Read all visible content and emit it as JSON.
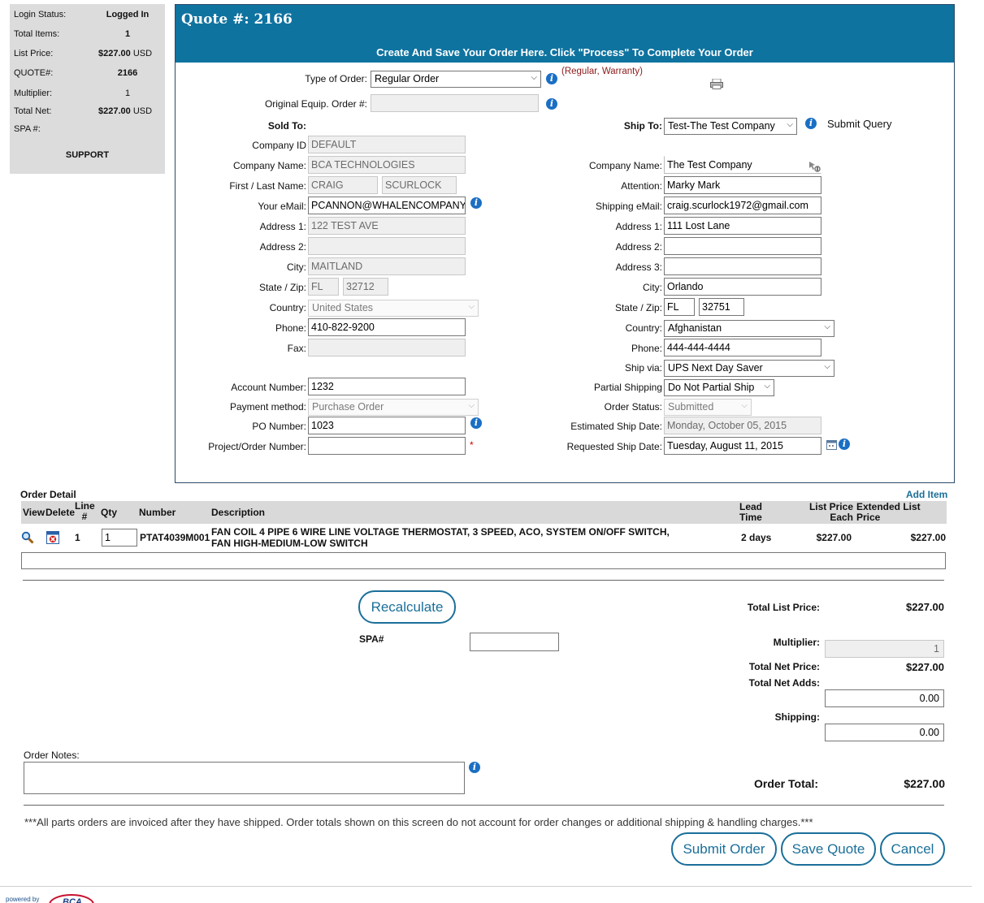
{
  "summary": {
    "login_status_label": "Login Status:",
    "login_status_value": "Logged In",
    "total_items_label": "Total Items:",
    "total_items_value": "1",
    "list_price_label": "List Price:",
    "list_price_value": "$227.00",
    "list_price_currency": "USD",
    "quote_label": "QUOTE#:",
    "quote_value": "2166",
    "multiplier_label": "Multiplier:",
    "multiplier_value": "1",
    "total_net_label": "Total Net:",
    "total_net_value": "$227.00",
    "total_net_currency": "USD",
    "spa_label": "SPA #:",
    "support_label": "SUPPORT"
  },
  "header": {
    "quote_title": "Quote #: 2166",
    "subtitle": "Create And Save Your Order Here. Click \"Process\" To Complete Your Order"
  },
  "order_type": {
    "label": "Type of Order:",
    "value": "Regular Order",
    "hint": "(Regular, Warranty)",
    "orig_label": "Original Equip. Order #:",
    "orig_value": ""
  },
  "sold_to": {
    "title": "Sold To:",
    "company_id_label": "Company ID",
    "company_id": "DEFAULT",
    "company_name_label": "Company Name:",
    "company_name": "BCA TECHNOLOGIES",
    "name_label": "First / Last Name:",
    "first_name": "CRAIG",
    "last_name": "SCURLOCK",
    "email_label": "Your eMail:",
    "email": "PCANNON@WHALENCOMPANY.COM",
    "address1_label": "Address 1:",
    "address1": "122 TEST AVE",
    "address2_label": "Address 2:",
    "address2": "",
    "city_label": "City:",
    "city": "MAITLAND",
    "state_zip_label": "State / Zip:",
    "state": "FL",
    "zip": "32712",
    "country_label": "Country:",
    "country": "United States",
    "phone_label": "Phone:",
    "phone": "410-822-9200",
    "fax_label": "Fax:",
    "fax": "",
    "account_label": "Account Number:",
    "account": "1232",
    "payment_label": "Payment method:",
    "payment": "Purchase Order",
    "po_label": "PO Number:",
    "po": "1023",
    "project_label": "Project/Order Number:",
    "project": "",
    "required_mark": "*"
  },
  "ship_to": {
    "label": "Ship To:",
    "value": "Test-The Test Company",
    "submit_query": "Submit Query",
    "company_name_label": "Company Name:",
    "company_name": "The Test Company",
    "attention_label": "Attention:",
    "attention": "Marky Mark",
    "email_label": "Shipping eMail:",
    "email": "craig.scurlock1972@gmail.com",
    "address1_label": "Address 1:",
    "address1": "111 Lost Lane",
    "address2_label": "Address 2:",
    "address2": "",
    "address3_label": "Address 3:",
    "address3": "",
    "city_label": "City:",
    "city": "Orlando",
    "state_zip_label": "State / Zip:",
    "state": "FL",
    "zip": "32751",
    "country_label": "Country:",
    "country": "Afghanistan",
    "phone_label": "Phone:",
    "phone": "444-444-4444",
    "ship_via_label": "Ship via:",
    "ship_via": "UPS Next Day Saver",
    "partial_label": "Partial Shipping",
    "partial": "Do Not Partial Ship",
    "status_label": "Order Status:",
    "status": "Submitted",
    "est_date_label": "Estimated Ship Date:",
    "est_date": "Monday, October 05, 2015",
    "req_date_label": "Requested Ship Date:",
    "req_date": "Tuesday, August 11, 2015"
  },
  "order_detail": {
    "title": "Order Detail",
    "add_item": "Add Item",
    "columns": {
      "view": "View",
      "delete": "Delete",
      "line": "Line #",
      "qty": "Qty",
      "number": "Number",
      "description": "Description",
      "lead_time": "Lead Time",
      "list_price_each": "List Price Each",
      "extended": "Extended List Price"
    },
    "rows": [
      {
        "line": "1",
        "qty": "1",
        "number": "PTAT4039M001",
        "description": "FAN COIL 4 PIPE 6 WIRE LINE VOLTAGE THERMOSTAT, 3 SPEED, ACO, SYSTEM ON/OFF SWITCH, FAN HIGH-MEDIUM-LOW SWITCH",
        "lead_time": "2 days",
        "list_price": "$227.00",
        "extended": "$227.00"
      }
    ]
  },
  "totals": {
    "recalculate": "Recalculate",
    "spa_label": "SPA#",
    "spa_value": "",
    "total_list_label": "Total List Price:",
    "total_list": "$227.00",
    "multiplier_label": "Multiplier:",
    "multiplier": "1",
    "total_net_label": "Total Net Price:",
    "total_net": "$227.00",
    "net_adds_label": "Total Net Adds:",
    "net_adds": "0.00",
    "shipping_label": "Shipping:",
    "shipping": "0.00",
    "order_total_label": "Order Total:",
    "order_total": "$227.00"
  },
  "notes": {
    "label": "Order Notes:",
    "value": ""
  },
  "footer": {
    "disclaimer": "***All parts orders are invoiced after they have shipped. Order totals shown on this screen do not account for order changes or additional shipping & handling charges.***",
    "submit_order": "Submit Order",
    "save_quote": "Save Quote",
    "cancel": "Cancel",
    "powered_by": "powered by"
  },
  "colors": {
    "header_blue": "#0f73a0",
    "button_blue": "#1b6f99",
    "info_blue": "#1a6fc4"
  }
}
